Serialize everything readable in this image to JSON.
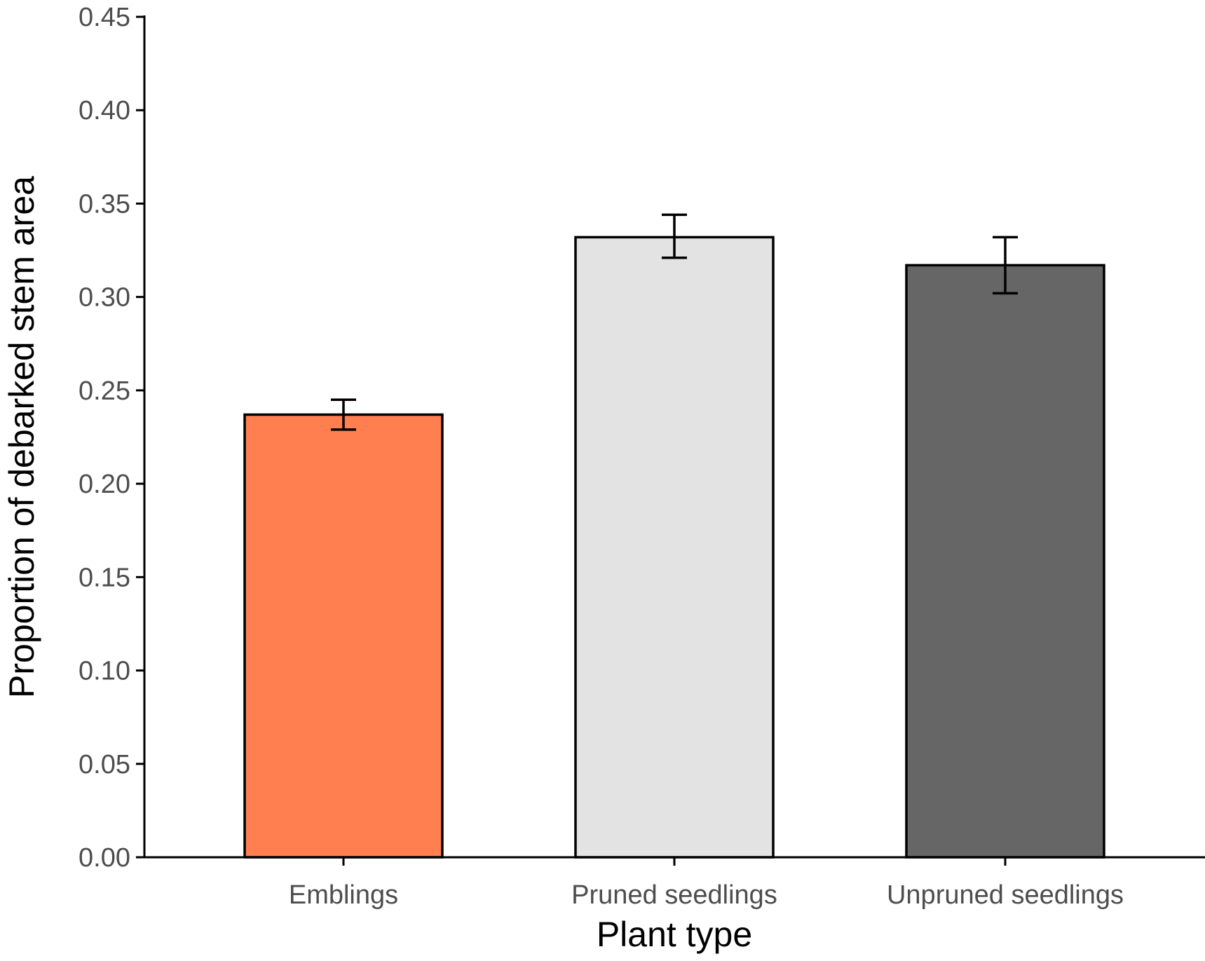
{
  "chart_data": {
    "type": "bar",
    "title": "",
    "xlabel": "Plant type",
    "ylabel": "Proportion of debarked stem area",
    "categories": [
      "Emblings",
      "Pruned seedlings",
      "Unpruned seedlings"
    ],
    "values": [
      0.237,
      0.332,
      0.317
    ],
    "error_lower": [
      0.229,
      0.321,
      0.302
    ],
    "error_upper": [
      0.245,
      0.344,
      0.332
    ],
    "colors": [
      "#ff7f50",
      "#e3e3e3",
      "#666666"
    ],
    "ylim": [
      0,
      0.45
    ],
    "yticks": [
      "0.00",
      "0.05",
      "0.10",
      "0.15",
      "0.20",
      "0.25",
      "0.30",
      "0.35",
      "0.40",
      "0.45"
    ],
    "grid": false,
    "legend": "none"
  }
}
